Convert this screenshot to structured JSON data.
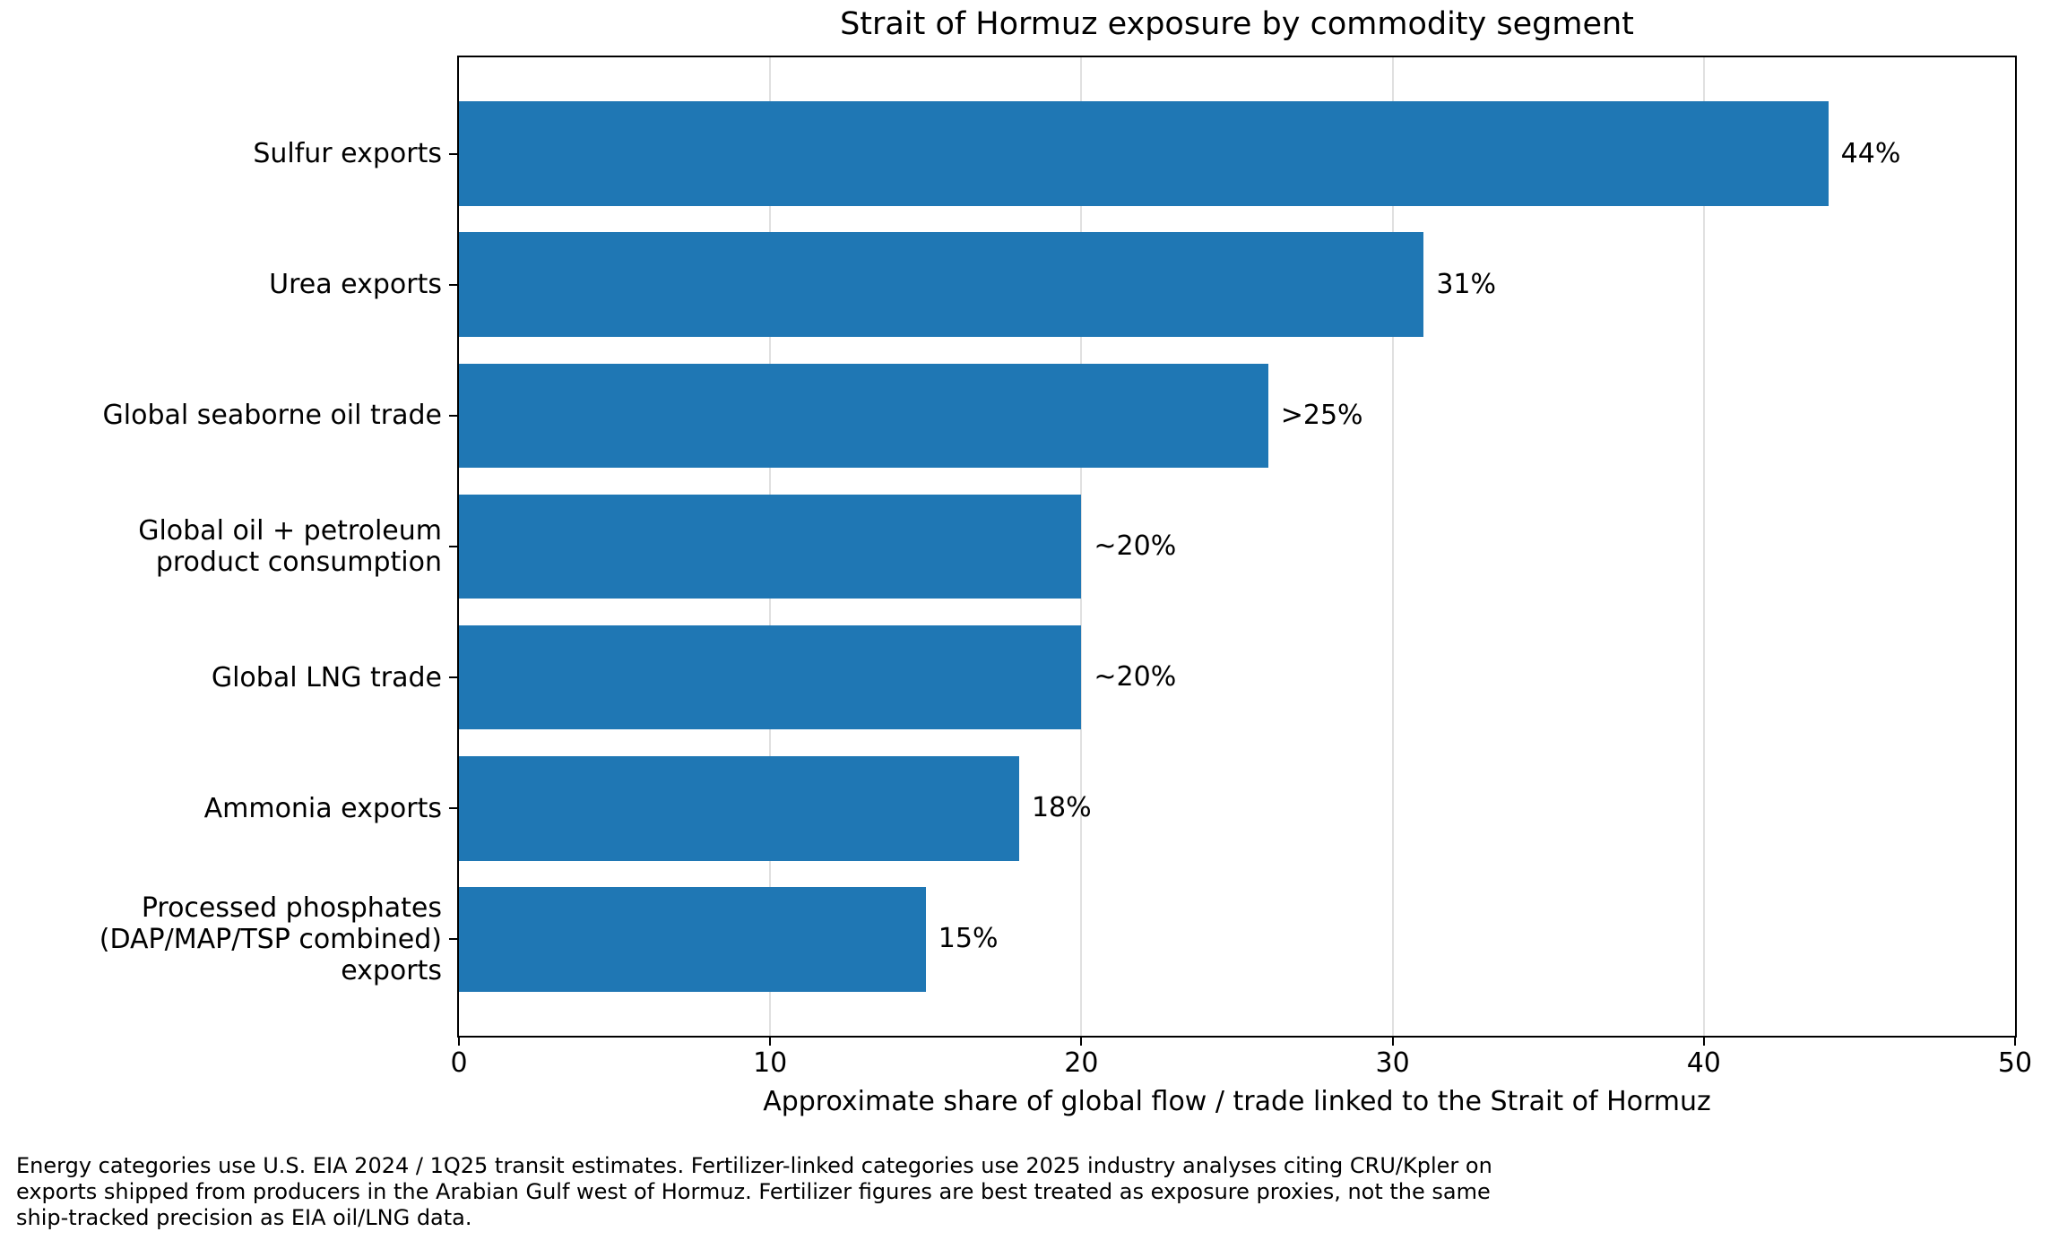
{
  "title": "Strait of Hormuz exposure by commodity segment",
  "chart_data": {
    "type": "bar",
    "orientation": "horizontal",
    "title": "Strait of Hormuz exposure by commodity segment",
    "xlabel": "Approximate share of global flow / trade linked to the Strait of Hormuz",
    "ylabel": "",
    "xlim": [
      0,
      50
    ],
    "xticks": [
      0,
      10,
      20,
      30,
      40,
      50
    ],
    "grid": "vertical gridlines at x ticks, drawn behind bars",
    "legend_position": "none",
    "bar_color": "#1f77b4",
    "categories": [
      "Sulfur exports",
      "Urea exports",
      "Global seaborne oil trade",
      "Global oil + petroleum\nproduct consumption",
      "Global LNG trade",
      "Ammonia exports",
      "Processed phosphates\n(DAP/MAP/TSP combined) exports"
    ],
    "values": [
      44,
      31,
      26,
      20,
      20,
      18,
      15
    ],
    "value_labels": [
      "44%",
      "31%",
      ">25%",
      "~20%",
      "~20%",
      "18%",
      "15%"
    ]
  },
  "footnote": {
    "lines": [
      "Energy categories use U.S. EIA 2024 / 1Q25 transit estimates. Fertilizer-linked categories use 2025 industry analyses citing CRU/Kpler on",
      "exports shipped from producers in the Arabian Gulf west of Hormuz. Fertilizer figures are best treated as exposure proxies, not the same",
      "ship-tracked precision as EIA oil/LNG data."
    ]
  }
}
